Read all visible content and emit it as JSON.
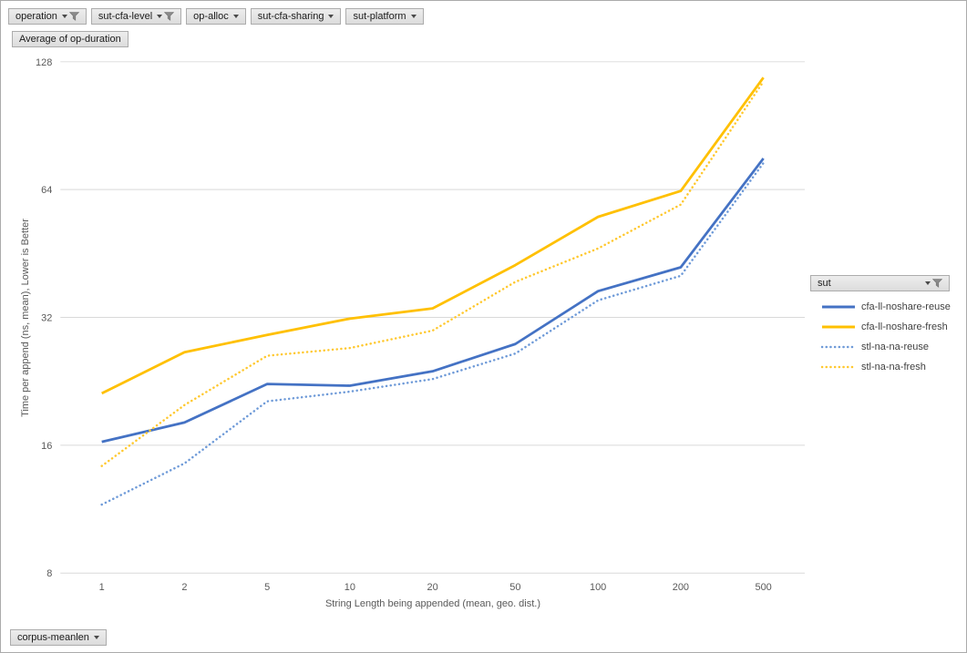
{
  "window": {
    "background": "#FFFFFF",
    "border": "#ABABAB"
  },
  "field_buttons": {
    "top": [
      {
        "label": "operation",
        "filtered": true
      },
      {
        "label": "sut-cfa-level",
        "filtered": true
      },
      {
        "label": "op-alloc",
        "filtered": false
      },
      {
        "label": "sut-cfa-sharing",
        "filtered": false
      },
      {
        "label": "sut-platform",
        "filtered": false
      }
    ],
    "value_field": {
      "label": "Average of op-duration"
    },
    "axis_field": {
      "label": "corpus-meanlen",
      "filtered": false
    },
    "legend_field": {
      "label": "sut",
      "filtered": true
    }
  },
  "colors": {
    "gridline": "#D9D9D9",
    "axis_text": "#595959",
    "button_border": "#ACACAC",
    "series_blue": "#4472C4",
    "series_gold": "#FFC000",
    "series_blue_light": "#6E9AD8",
    "series_gold_light": "#FFC82E"
  },
  "chart_data": {
    "type": "line",
    "title": "Average of op-duration",
    "x_categories": [
      "1",
      "2",
      "5",
      "10",
      "20",
      "50",
      "100",
      "200",
      "500"
    ],
    "xlabel": "String Length being appended (mean, geo. dist.)",
    "ylabel": "Time per append (ns, mean),  Lower is Better",
    "y_scale": "log2",
    "y_ticks": [
      8,
      16,
      32,
      64,
      128
    ],
    "ylim": [
      8,
      128
    ],
    "grid": true,
    "legend_position": "right",
    "legend_title": "sut",
    "series": [
      {
        "name": "cfa-ll-noshare-reuse",
        "color": "#4472C4",
        "style": "solid",
        "values": [
          16.3,
          18.1,
          22.3,
          22.1,
          23.9,
          27.7,
          36.9,
          42.0,
          75.8
        ]
      },
      {
        "name": "cfa-ll-noshare-fresh",
        "color": "#FFC000",
        "style": "solid",
        "values": [
          21.2,
          26.5,
          29.1,
          31.8,
          33.6,
          42.5,
          55.2,
          63.5,
          117.5
        ]
      },
      {
        "name": "stl-na-na-reuse",
        "color": "#6E9AD8",
        "style": "dotted",
        "values": [
          11.6,
          14.5,
          20.3,
          21.4,
          22.9,
          26.3,
          35.1,
          40.1,
          73.9
        ]
      },
      {
        "name": "stl-na-na-fresh",
        "color": "#FFC82E",
        "style": "dotted",
        "values": [
          14.3,
          19.9,
          26.0,
          27.1,
          29.8,
          38.8,
          46.5,
          59.0,
          115.0
        ]
      }
    ]
  }
}
